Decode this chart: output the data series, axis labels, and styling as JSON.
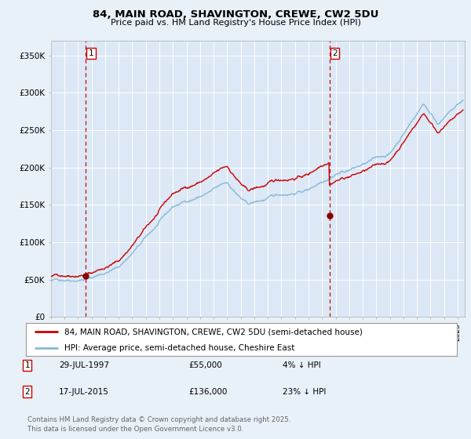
{
  "title1": "84, MAIN ROAD, SHAVINGTON, CREWE, CW2 5DU",
  "title2": "Price paid vs. HM Land Registry's House Price Index (HPI)",
  "background_color": "#e8f0f8",
  "plot_bg_color": "#dce8f5",
  "grid_color": "#ffffff",
  "red_line_color": "#cc0000",
  "blue_line_color": "#88b8d8",
  "marker_color": "#8b0000",
  "dashed_color": "#cc0000",
  "sale1_date": 1997.57,
  "sale1_price": 55000,
  "sale2_date": 2015.54,
  "sale2_price": 136000,
  "ylim_min": 0,
  "ylim_max": 370000,
  "xlim_min": 1995.0,
  "xlim_max": 2025.5,
  "legend1": "84, MAIN ROAD, SHAVINGTON, CREWE, CW2 5DU (semi-detached house)",
  "legend2": "HPI: Average price, semi-detached house, Cheshire East",
  "table_date1": "29-JUL-1997",
  "table_price1": "£55,000",
  "table_pct1": "4% ↓ HPI",
  "table_date2": "17-JUL-2015",
  "table_price2": "£136,000",
  "table_pct2": "23% ↓ HPI",
  "footer": "Contains HM Land Registry data © Crown copyright and database right 2025.\nThis data is licensed under the Open Government Licence v3.0.",
  "yticks": [
    0,
    50000,
    100000,
    150000,
    200000,
    250000,
    300000,
    350000
  ],
  "ytick_labels": [
    "£0",
    "£50K",
    "£100K",
    "£150K",
    "£200K",
    "£250K",
    "£300K",
    "£350K"
  ]
}
